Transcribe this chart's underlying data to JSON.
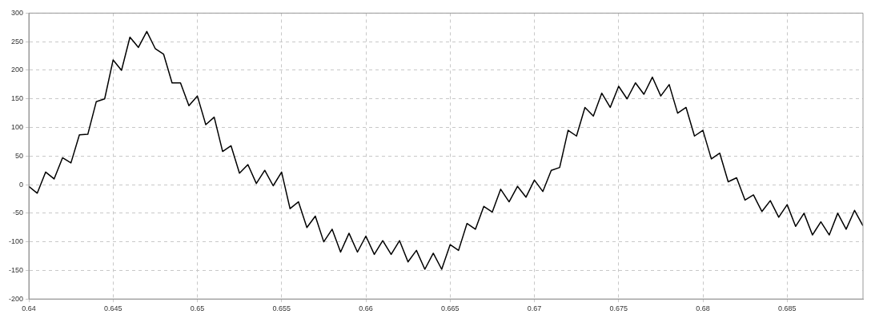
{
  "chart_data": {
    "type": "line",
    "x": [
      0.64,
      0.6405,
      0.641,
      0.6415,
      0.642,
      0.6425,
      0.643,
      0.6435,
      0.644,
      0.6445,
      0.645,
      0.6455,
      0.646,
      0.6465,
      0.647,
      0.6475,
      0.648,
      0.6485,
      0.649,
      0.6495,
      0.65,
      0.6505,
      0.651,
      0.6515,
      0.652,
      0.6525,
      0.653,
      0.6535,
      0.654,
      0.6545,
      0.655,
      0.6555,
      0.656,
      0.6565,
      0.657,
      0.6575,
      0.658,
      0.6585,
      0.659,
      0.6595,
      0.66,
      0.6605,
      0.661,
      0.6615,
      0.662,
      0.6625,
      0.663,
      0.6635,
      0.664,
      0.6645,
      0.665,
      0.6655,
      0.666,
      0.6665,
      0.667,
      0.6675,
      0.668,
      0.6685,
      0.669,
      0.6695,
      0.67,
      0.6705,
      0.671,
      0.6715,
      0.672,
      0.6725,
      0.673,
      0.6735,
      0.674,
      0.6745,
      0.675,
      0.6755,
      0.676,
      0.6765,
      0.677,
      0.6775,
      0.678,
      0.6785,
      0.679,
      0.6795,
      0.68,
      0.6805,
      0.681,
      0.6815,
      0.682,
      0.6825,
      0.683,
      0.6835,
      0.684,
      0.6845,
      0.685,
      0.6855,
      0.686,
      0.6865,
      0.687,
      0.6875,
      0.688,
      0.6885,
      0.689,
      0.6895
    ],
    "series": [
      {
        "color": "#000000",
        "values": [
          -3,
          -15,
          22,
          10,
          47,
          38,
          87,
          88,
          145,
          150,
          218,
          200,
          258,
          240,
          268,
          238,
          228,
          178,
          178,
          138,
          155,
          105,
          118,
          58,
          68,
          20,
          35,
          2,
          25,
          -2,
          22,
          -42,
          -30,
          -75,
          -55,
          -100,
          -78,
          -118,
          -85,
          -118,
          -90,
          -122,
          -98,
          -122,
          -98,
          -135,
          -115,
          -148,
          -120,
          -148,
          -105,
          -115,
          -68,
          -78,
          -38,
          -48,
          -8,
          -30,
          -3,
          -22,
          8,
          -12,
          25,
          30,
          95,
          85,
          135,
          120,
          160,
          135,
          172,
          150,
          178,
          158,
          188,
          155,
          175,
          125,
          135,
          85,
          95,
          45,
          55,
          5,
          12,
          -27,
          -18,
          -47,
          -28,
          -57,
          -35,
          -73,
          -50,
          -88,
          -65,
          -88,
          -50,
          -78,
          -45,
          -72
        ]
      }
    ],
    "xlim": [
      0.64,
      0.6895
    ],
    "xticks": [
      0.64,
      0.645,
      0.65,
      0.655,
      0.66,
      0.665,
      0.67,
      0.675,
      0.68,
      0.685
    ],
    "ylim": [
      -200,
      300
    ],
    "yticks": [
      -200,
      -150,
      -100,
      -50,
      0,
      50,
      100,
      150,
      200,
      250,
      300
    ],
    "grid": true,
    "marker": "none",
    "line_style": "solid",
    "legend": false
  }
}
